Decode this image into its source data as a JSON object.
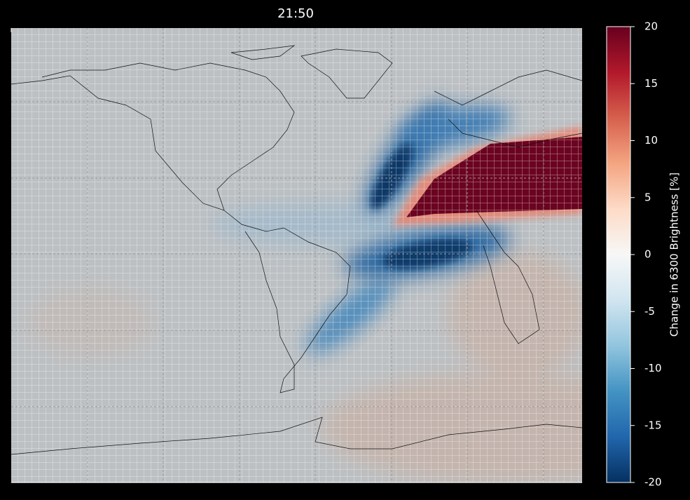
{
  "chart_data": {
    "type": "map",
    "title": "21:50",
    "colorbar": {
      "label": "Change in 6300 Brightness [%]",
      "lim": [
        -20,
        20
      ],
      "ticks": [
        -20,
        -15,
        -10,
        -5,
        0,
        5,
        10,
        15,
        20
      ],
      "colors": [
        "#053061",
        "#2166ac",
        "#4393c3",
        "#92c5de",
        "#d1e5f0",
        "#f7f7f7",
        "#fddbc7",
        "#f4a582",
        "#d6604d",
        "#b2182b",
        "#67001f"
      ]
    }
  }
}
